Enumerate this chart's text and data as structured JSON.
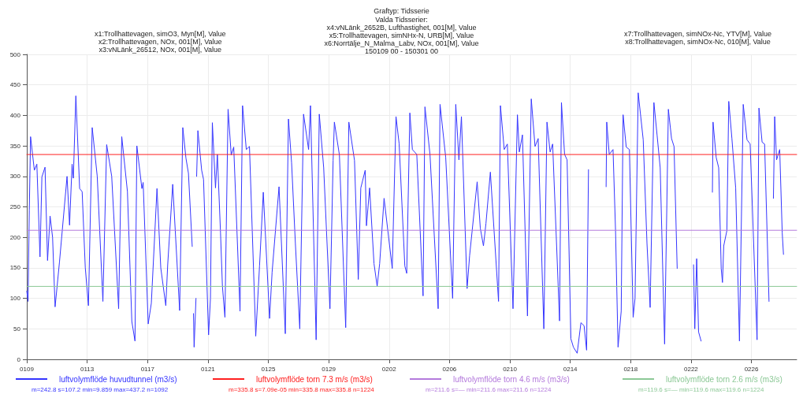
{
  "chart_data": {
    "type": "line",
    "title": "Graftyp: Tidsserie",
    "subtitle": "Valda Tidsserier:\nx4:vNLänk_2652B, Lufthastighet, 001[M], Value\nx5:Trollhattevagen, simNHx-N, URB[M], Value\nx6:Norrtälje_N_Malma_Labv, NOx, 001[M], Value\n150109 00 - 150301 00",
    "annotations": [
      "x1:Trollhattevagen, simO3, Myn[M], Value\nx2:Trollhattevagen, NOx, 001[M], Value\nx3:vNLänk_26512, NOx, 001[M], Value",
      "x7:Trollhattevagen, simNOx-Nc, YTV[M], Value\nx8:Trollhattevagen, simNOx-Nc, 010[M], Value",
      "m=242.8 s=107.2 min=9.859 max=437.2 n=1092",
      "m=335.8 s=7.09e-05 min=335.8 max=335.8 n=1224",
      "m=211.6 s=— min=211.6 max=211.6 n=1224",
      "m=119.6 s=— min=119.6 max=119.6 n=1224"
    ],
    "xlim": [
      "--01-09",
      "--03-01"
    ],
    "xticks": [
      {
        "value": "--01-09",
        "label": "0109"
      },
      {
        "value": "--01-13",
        "label": "0113"
      },
      {
        "value": "--01-17",
        "label": "0117"
      },
      {
        "value": "--01-21",
        "label": "0121"
      },
      {
        "value": "--01-25",
        "label": "0125"
      },
      {
        "value": "--01-29",
        "label": "0129"
      },
      {
        "value": "--02-02",
        "label": "0202"
      },
      {
        "value": "--02-06",
        "label": "0206"
      },
      {
        "value": "--02-10",
        "label": "0210"
      },
      {
        "value": "--02-14",
        "label": "0214"
      },
      {
        "value": "--02-18",
        "label": "0218"
      },
      {
        "value": "--02-22",
        "label": "0222"
      },
      {
        "value": "--02-26",
        "label": "0226"
      }
    ],
    "ylim": [
      0,
      500
    ],
    "yticks": [
      0,
      50,
      100,
      150,
      200,
      250,
      300,
      350,
      400,
      450,
      500
    ],
    "grid": true,
    "legend": "bottom",
    "marker": "none",
    "line_style": "solid",
    "series": [
      {
        "name": "luftvolymflöde huvudtunnel (m3/s)",
        "color": "#3535ff",
        "x": [
          "--01-09T00:00",
          "--01-09T02:00",
          "--01-09T04:00",
          "--01-09T06:00",
          "--01-09T12:00",
          "--01-09T16:00",
          "--01-09T21:00",
          "--01-10T00:00",
          "--01-10T05:00",
          "--01-10T09:00",
          "--01-10T13:00",
          "--01-10T17:00",
          "--01-10T21:00",
          "--01-11T04:00",
          "--01-11T16:00",
          "--01-11T20:00",
          "--01-12T00:00",
          "--01-12T02:00",
          "--01-12T06:00",
          "--01-12T12:00",
          "--01-12T16:00",
          "--01-12T21:00",
          "--01-13T02:00",
          "--01-13T08:00",
          "--01-13T16:00",
          "--01-14T01:00",
          "--01-14T07:00",
          "--01-14T15:00",
          "--01-15T02:00",
          "--01-15T07:00",
          "--01-15T16:00",
          "--01-15T23:00",
          "--01-16T04:00",
          "--01-16T07:00",
          "--01-16T15:00",
          "--01-16T17:00",
          "--01-17T01:00",
          "--01-17T06:00",
          "--01-17T15:00",
          "--01-17T21:00",
          "--01-18T05:00",
          "--01-18T08:00",
          "--01-18T16:00",
          "--01-19T03:00",
          "--01-19T08:00",
          "--01-19T13:00",
          "--01-19T17:00",
          "--01-19T23:00",
          "--01-20T00:00",
          "--01-20T01:00",
          "--01-20T02:00",
          "--01-20T05:00",
          "--01-20T05:30",
          "--01-20T06:00",
          "--01-20T08:00",
          "--01-20T14:00",
          "--01-20T17:00",
          "--01-21T01:00",
          "--01-21T04:00",
          "--01-21T07:00",
          "--01-21T12:00",
          "--01-21T15:00",
          "--01-21T20:00",
          "--01-21T23:00",
          "--01-22T03:00",
          "--01-22T08:00",
          "--01-22T13:00",
          "--01-22T17:00",
          "--01-23T03:00",
          "--01-23T07:00",
          "--01-23T13:00",
          "--01-23T18:00",
          "--01-24T04:00",
          "--01-24T10:00",
          "--01-24T16:00",
          "--01-25T02:00",
          "--01-25T06:00",
          "--01-25T17:00",
          "--01-26T03:00",
          "--01-26T08:00",
          "--01-26T13:00",
          "--01-26T19:00",
          "--01-27T02:00",
          "--01-27T08:00",
          "--01-27T16:00",
          "--01-27T19:00",
          "--01-28T04:00",
          "--01-28T09:00",
          "--01-28T16:00",
          "--01-29T02:00",
          "--01-29T07:00",
          "--01-29T09:00",
          "--01-29T17:00",
          "--01-30T03:00",
          "--01-30T08:00",
          "--01-30T17:00",
          "--01-30T23:00",
          "--01-31T03:00",
          "--01-31T10:00",
          "--01-31T12:00",
          "--01-31T17:00",
          "--02-01T00:00",
          "--02-01T05:00",
          "--02-01T09:00",
          "--02-01T16:00",
          "--02-02T05:00",
          "--02-02T11:00",
          "--02-02T16:00",
          "--02-03T01:00",
          "--02-03T04:00",
          "--02-03T09:00",
          "--02-03T13:00",
          "--02-03T20:00",
          "--02-04T06:00",
          "--02-04T09:00",
          "--02-04T17:00",
          "--02-05T06:00",
          "--02-05T09:00",
          "--02-05T18:00",
          "--02-06T05:00",
          "--02-06T10:00",
          "--02-06T15:00",
          "--02-06T19:00",
          "--02-07T04:00",
          "--02-07T08:00",
          "--02-07T20:00",
          "--02-08T01:00",
          "--02-08T06:00",
          "--02-08T10:00",
          "--02-08T17:00",
          "--02-09T06:00",
          "--02-09T09:00",
          "--02-09T15:00",
          "--02-09T20:00",
          "--02-10T05:00",
          "--02-10T12:00",
          "--02-10T15:00",
          "--02-10T20:00",
          "--02-11T04:00",
          "--02-11T10:00",
          "--02-11T16:00",
          "--02-11T21:00",
          "--02-12T06:00",
          "--02-12T11:00",
          "--02-12T16:00",
          "--02-12T20:00",
          "--02-13T07:00",
          "--02-13T10:00",
          "--02-13T15:00",
          "--02-13T19:00",
          "--02-14T01:00",
          "--02-14T05:00",
          "--02-14T11:00",
          "--02-14T17:00",
          "--02-14T22:00",
          "--02-15T02:00",
          "--02-15T05:00",
          "--02-16T00:00",
          "--02-16T09:00",
          "--02-16T10:00",
          "--02-16T14:00",
          "--02-16T20:00",
          "--02-17T00:00",
          "--02-17T04:00",
          "--02-17T09:00",
          "--02-17T12:00",
          "--02-17T17:00",
          "--02-17T22:00",
          "--02-18T04:00",
          "--02-18T07:00",
          "--02-18T12:00",
          "--02-18T20:00",
          "--02-19T02:00",
          "--02-19T07:00",
          "--02-19T13:00",
          "--02-19T18:00",
          "--02-19T23:00",
          "--02-20T06:00",
          "--02-20T12:00",
          "--02-20T17:00",
          "--02-20T21:00",
          "--02-21T02:00",
          "--02-21T12:00",
          "--02-22T04:00",
          "--02-22T06:00",
          "--02-22T09:00",
          "--02-22T12:00",
          "--02-22T16:00",
          "--02-23T00:00",
          "--02-23T10:00",
          "--02-23T11:00",
          "--02-23T16:00",
          "--02-23T20:00",
          "--02-24T00:00",
          "--02-24T02:00",
          "--02-24T04:00",
          "--02-24T09:00",
          "--02-24T12:00",
          "--02-24T17:00",
          "--02-24T23:00",
          "--02-25T05:00",
          "--02-25T11:00",
          "--02-25T17:00",
          "--02-25T22:00",
          "--02-26T09:00",
          "--02-26T12:00",
          "--02-26T17:00",
          "--02-26T21:00",
          "--02-27T04:00",
          "--02-27T08:00",
          "--02-27T11:00",
          "--02-27T13:00",
          "--02-27T16:00",
          "--02-27T21:00",
          "--02-28T01:00",
          "--02-28T03:00"
        ],
        "values": [
          112,
          95,
          245,
          365,
          310,
          320,
          168,
          299,
          315,
          162,
          235,
          200,
          86,
          160,
          300,
          220,
          320,
          297,
          432,
          280,
          275,
          150,
          88,
          380,
          300,
          95,
          352,
          300,
          83,
          365,
          275,
          62,
          30,
          350,
          280,
          290,
          58,
          92,
          280,
          150,
          88,
          155,
          287,
          80,
          380,
          330,
          305,
          185,
          null,
          75,
          20,
          100,
          null,
          300,
          375,
          310,
          295,
          40,
          100,
          388,
          281,
          336,
          207,
          120,
          69,
          410,
          335,
          348,
          79,
          416,
          344,
          349,
          38,
          153,
          274,
          67,
          143,
          283,
          42,
          394,
          322,
          190,
          50,
          402,
          344,
          416,
          32,
          402,
          314,
          83,
          326,
          389,
          335,
          52,
          389,
          326,
          131,
          281,
          310,
          219,
          281,
          157,
          120,
          157,
          264,
          149,
          398,
          353,
          153,
          141,
          404,
          344,
          336,
          104,
          414,
          336,
          83,
          418,
          331,
          100,
          418,
          327,
          398,
          116,
          170,
          291,
          215,
          186,
          223,
          307,
          95,
          416,
          344,
          353,
          83,
          401,
          340,
          368,
          71,
          427,
          349,
          362,
          50,
          389,
          340,
          353,
          63,
          421,
          336,
          327,
          34,
          20,
          10,
          60,
          55,
          15,
          311,
          null,
          283,
          389,
          336,
          344,
          211,
          20,
          79,
          401,
          348,
          344,
          69,
          100,
          437,
          360,
          190,
          85,
          421,
          368,
          314,
          25,
          410,
          362,
          349,
          149,
          null,
          155,
          50,
          165,
          45,
          30,
          null,
          274,
          389,
          331,
          314,
          149,
          126,
          186,
          211,
          423,
          362,
          281,
          30,
          418,
          360,
          353,
          32,
          412,
          356,
          353,
          95,
          null,
          264,
          398,
          327,
          344,
          207,
          172
        ]
      },
      {
        "name": "luftvolymflöde torn 7.3 m/s (m3/s)",
        "color": "#ff2020",
        "x": [
          "--01-09",
          "--03-01"
        ],
        "values": [
          335.8,
          335.8
        ]
      },
      {
        "name": "luftvolymflöde torn 4.6 m/s (m3/s)",
        "color": "#b47adc",
        "x": [
          "--01-09",
          "--03-01"
        ],
        "values": [
          211.6,
          211.6
        ]
      },
      {
        "name": "luftvolymflöde torn 2.6 m/s (m3/s)",
        "color": "#8cc896",
        "x": [
          "--01-09",
          "--03-01"
        ],
        "values": [
          119.6,
          119.6
        ]
      }
    ]
  }
}
